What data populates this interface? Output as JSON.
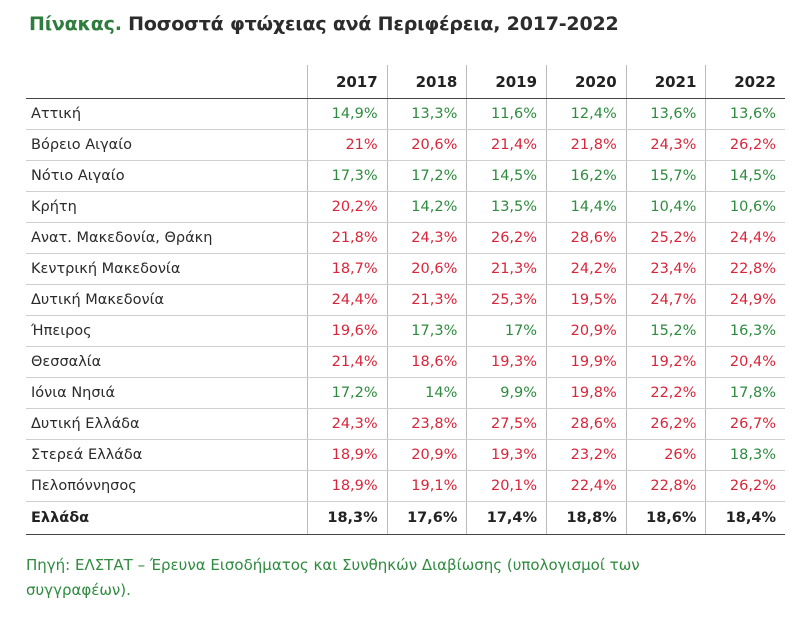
{
  "title": {
    "lead": "Πίνακας.",
    "rest": "Ποσοστά φτώχειας ανά Περιφέρεια, 2017-2022"
  },
  "columns": [
    "2017",
    "2018",
    "2019",
    "2020",
    "2021",
    "2022"
  ],
  "colors": {
    "low": "#2e8b3f",
    "high": "#d9253a",
    "title_lead": "#2e7d3c"
  },
  "rows": [
    {
      "region": "Αττική",
      "values": [
        "14,9%",
        "13,3%",
        "11,6%",
        "12,4%",
        "13,6%",
        "13,6%"
      ],
      "tones": [
        "g",
        "g",
        "g",
        "g",
        "g",
        "g"
      ]
    },
    {
      "region": "Βόρειο Αιγαίο",
      "values": [
        "21%",
        "20,6%",
        "21,4%",
        "21,8%",
        "24,3%",
        "26,2%"
      ],
      "tones": [
        "r",
        "r",
        "r",
        "r",
        "r",
        "r"
      ]
    },
    {
      "region": "Νότιο Αιγαίο",
      "values": [
        "17,3%",
        "17,2%",
        "14,5%",
        "16,2%",
        "15,7%",
        "14,5%"
      ],
      "tones": [
        "g",
        "g",
        "g",
        "g",
        "g",
        "g"
      ]
    },
    {
      "region": "Κρήτη",
      "values": [
        "20,2%",
        "14,2%",
        "13,5%",
        "14,4%",
        "10,4%",
        "10,6%"
      ],
      "tones": [
        "r",
        "g",
        "g",
        "g",
        "g",
        "g"
      ]
    },
    {
      "region": "Ανατ. Μακεδονία, Θράκη",
      "values": [
        "21,8%",
        "24,3%",
        "26,2%",
        "28,6%",
        "25,2%",
        "24,4%"
      ],
      "tones": [
        "r",
        "r",
        "r",
        "r",
        "r",
        "r"
      ]
    },
    {
      "region": "Κεντρική Μακεδονία",
      "values": [
        "18,7%",
        "20,6%",
        "21,3%",
        "24,2%",
        "23,4%",
        "22,8%"
      ],
      "tones": [
        "r",
        "r",
        "r",
        "r",
        "r",
        "r"
      ]
    },
    {
      "region": "Δυτική Μακεδονία",
      "values": [
        "24,4%",
        "21,3%",
        "25,3%",
        "19,5%",
        "24,7%",
        "24,9%"
      ],
      "tones": [
        "r",
        "r",
        "r",
        "r",
        "r",
        "r"
      ]
    },
    {
      "region": "Ήπειρος",
      "values": [
        "19,6%",
        "17,3%",
        "17%",
        "20,9%",
        "15,2%",
        "16,3%"
      ],
      "tones": [
        "r",
        "g",
        "g",
        "r",
        "g",
        "g"
      ]
    },
    {
      "region": "Θεσσαλία",
      "values": [
        "21,4%",
        "18,6%",
        "19,3%",
        "19,9%",
        "19,2%",
        "20,4%"
      ],
      "tones": [
        "r",
        "r",
        "r",
        "r",
        "r",
        "r"
      ]
    },
    {
      "region": "Ιόνια Νησιά",
      "values": [
        "17,2%",
        "14%",
        "9,9%",
        "19,8%",
        "22,2%",
        "17,8%"
      ],
      "tones": [
        "g",
        "g",
        "g",
        "r",
        "r",
        "g"
      ]
    },
    {
      "region": "Δυτική Ελλάδα",
      "values": [
        "24,3%",
        "23,8%",
        "27,5%",
        "28,6%",
        "26,2%",
        "26,7%"
      ],
      "tones": [
        "r",
        "r",
        "r",
        "r",
        "r",
        "r"
      ]
    },
    {
      "region": "Στερεά Ελλάδα",
      "values": [
        "18,9%",
        "20,9%",
        "19,3%",
        "23,2%",
        "26%",
        "18,3%"
      ],
      "tones": [
        "r",
        "r",
        "r",
        "r",
        "r",
        "g"
      ]
    },
    {
      "region": "Πελοπόννησος",
      "values": [
        "18,9%",
        "19,1%",
        "20,1%",
        "22,4%",
        "22,8%",
        "26,2%"
      ],
      "tones": [
        "r",
        "r",
        "r",
        "r",
        "r",
        "r"
      ]
    }
  ],
  "total": {
    "region": "Ελλάδα",
    "values": [
      "18,3%",
      "17,6%",
      "17,4%",
      "18,8%",
      "18,6%",
      "18,4%"
    ]
  },
  "source": "Πηγή: ΕΛΣΤΑΤ – Έρευνα Εισοδήματος και Συνθηκών Διαβίωσης (υπολογισμοί των συγγραφέων)."
}
